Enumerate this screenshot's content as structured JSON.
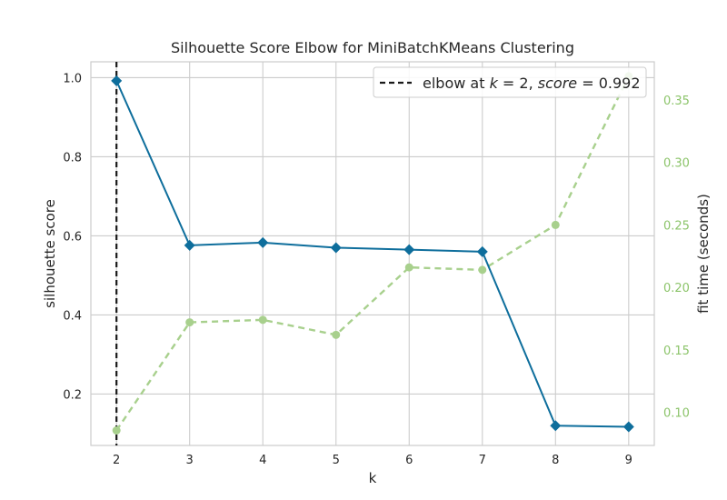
{
  "chart_data": {
    "type": "line",
    "title": "Silhouette Score Elbow for MiniBatchKMeans Clustering",
    "xlabel": "k",
    "ylabel": "silhouette score",
    "y2label": "fit time (seconds)",
    "x": [
      2,
      3,
      4,
      5,
      6,
      7,
      8,
      9
    ],
    "xlim": [
      1.65,
      9.35
    ],
    "ylim": [
      0.07,
      1.04
    ],
    "y2lim": [
      0.0735,
      0.3805
    ],
    "yticks": [
      0.2,
      0.4,
      0.6,
      0.8,
      1.0
    ],
    "y2ticks": [
      0.1,
      0.15,
      0.2,
      0.25,
      0.3,
      0.35
    ],
    "grid": true,
    "legend_position": "top-right",
    "series": [
      {
        "axis": "left",
        "marker": "diamond",
        "style": "solid",
        "color": "#0e6e9c",
        "values": [
          0.992,
          0.576,
          0.583,
          0.57,
          0.565,
          0.56,
          0.12,
          0.117
        ]
      },
      {
        "axis": "right",
        "marker": "circle",
        "style": "dashed",
        "color": "#a8d08d",
        "values": [
          0.0855,
          0.172,
          0.174,
          0.162,
          0.216,
          0.214,
          0.25,
          0.369
        ]
      }
    ],
    "elbow": {
      "k": 2,
      "score": 0.992,
      "style": "dashed",
      "color": "#1a1a1a",
      "legend_label": {
        "prefix": "elbow at ",
        "k_var": "k",
        "eq1": " = 2, ",
        "score_var": "score",
        "eq2": " = 0.992"
      }
    },
    "colors": {
      "grid": "#cccccc",
      "left_axis_text": "#262626",
      "right_axis_text": "#8cc46a"
    }
  }
}
